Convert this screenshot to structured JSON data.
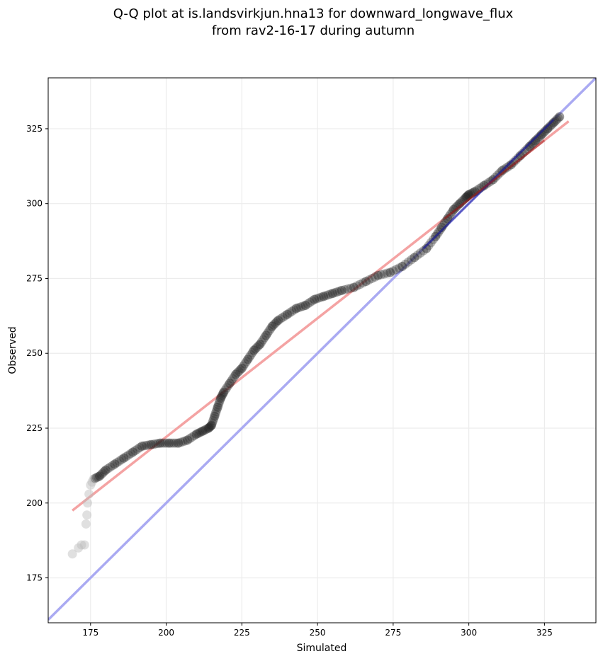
{
  "chart_data": {
    "type": "scatter",
    "title_lines": [
      "Q-Q plot at is.landsvirkjun.hna13 for downward_longwave_flux",
      "from rav2-16-17 during autumn"
    ],
    "xlabel": "Simulated",
    "ylabel": "Observed",
    "xlim": [
      161,
      342
    ],
    "ylim": [
      160,
      342
    ],
    "xticks": [
      175,
      200,
      225,
      250,
      275,
      300,
      325
    ],
    "yticks": [
      175,
      200,
      225,
      250,
      275,
      300,
      325
    ],
    "grid": true,
    "colors": {
      "points": "#222222",
      "points_light": "#bbbbbb",
      "identity_line": "#aaaaf2",
      "fit_line": "#f4a3a3",
      "center_overlay_blue": "#1a1aa0",
      "center_overlay_red": "#a01a1a",
      "grid": "#ececec",
      "axes": "#000000"
    },
    "identity_line": {
      "x": [
        161,
        342
      ],
      "y": [
        161,
        342
      ]
    },
    "fit_line": {
      "x": [
        169,
        333
      ],
      "y": [
        197.5,
        327.5
      ]
    },
    "qq_points": {
      "x": [
        169,
        171,
        172,
        173,
        173.5,
        173.8,
        174,
        174.5,
        175,
        175.5,
        176,
        178,
        180,
        183,
        186,
        189,
        192,
        195,
        198,
        201,
        204,
        207,
        210,
        212,
        214,
        215,
        216,
        217,
        218,
        219,
        221,
        223,
        225,
        227,
        229,
        231,
        233,
        235,
        237,
        240,
        243,
        246,
        249,
        252,
        255,
        258,
        262,
        266,
        270,
        274,
        278,
        282,
        286,
        289,
        291,
        293,
        295,
        297,
        299,
        300,
        302,
        305,
        308,
        311,
        314,
        317,
        320,
        322,
        324,
        326,
        328,
        330
      ],
      "y": [
        183,
        185,
        186,
        186,
        193,
        196,
        200,
        203,
        206,
        207,
        208,
        209,
        211,
        213,
        215,
        217,
        219,
        219.5,
        220,
        220,
        220,
        221,
        223,
        224,
        225,
        226,
        229,
        232,
        235,
        237,
        240,
        243,
        245,
        248,
        251,
        253,
        256,
        259,
        261,
        263,
        265,
        266,
        268,
        269,
        270,
        271,
        272,
        274,
        276,
        277,
        279,
        282,
        285,
        289,
        292,
        295,
        298,
        300,
        302,
        303,
        304,
        306,
        308,
        311,
        313,
        316,
        319,
        321,
        323,
        325,
        327,
        329
      ],
      "light_index_max": 10
    }
  }
}
